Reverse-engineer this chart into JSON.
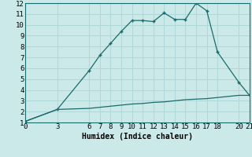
{
  "xlabel": "Humidex (Indice chaleur)",
  "background_color": "#cce9e9",
  "grid_color": "#b0d8d8",
  "line_color": "#1a6b6b",
  "xlim": [
    0,
    21
  ],
  "ylim": [
    1,
    12
  ],
  "xticks": [
    0,
    3,
    6,
    7,
    8,
    9,
    10,
    11,
    12,
    13,
    14,
    15,
    16,
    17,
    18,
    20,
    21
  ],
  "yticks": [
    1,
    2,
    3,
    4,
    5,
    6,
    7,
    8,
    9,
    10,
    11,
    12
  ],
  "curve1_x": [
    0,
    3,
    6,
    7,
    8,
    9,
    10,
    11,
    12,
    13,
    14,
    15,
    16,
    17,
    18,
    20,
    21
  ],
  "curve1_y": [
    1.1,
    2.2,
    5.8,
    7.2,
    8.3,
    9.4,
    10.4,
    10.4,
    10.3,
    11.1,
    10.5,
    10.5,
    12.0,
    11.3,
    7.5,
    4.7,
    3.5
  ],
  "curve2_x": [
    0,
    3,
    6,
    7,
    8,
    9,
    10,
    11,
    12,
    13,
    14,
    15,
    16,
    17,
    18,
    20,
    21
  ],
  "curve2_y": [
    1.1,
    2.2,
    2.3,
    2.4,
    2.5,
    2.6,
    2.7,
    2.75,
    2.85,
    2.9,
    3.0,
    3.1,
    3.15,
    3.2,
    3.3,
    3.5,
    3.5
  ],
  "xlabel_fontsize": 7,
  "tick_fontsize": 6.5
}
